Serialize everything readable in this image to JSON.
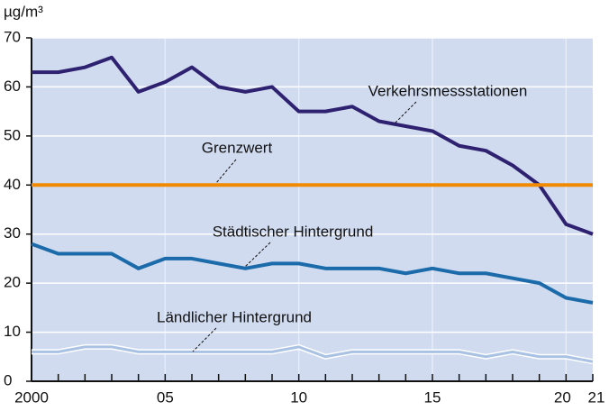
{
  "chart_data": {
    "type": "line",
    "y_label": "µg/m³",
    "x": [
      2000,
      2001,
      2002,
      2003,
      2004,
      2005,
      2006,
      2007,
      2008,
      2009,
      2010,
      2011,
      2012,
      2013,
      2014,
      2015,
      2016,
      2017,
      2018,
      2019,
      2020,
      2021
    ],
    "xlim": [
      2000,
      2021
    ],
    "xticks": [
      2000,
      {
        "value": 2005,
        "label": "05"
      },
      10,
      15,
      20,
      21
    ],
    "ylim": [
      0,
      70
    ],
    "yticks": [
      0,
      10,
      20,
      30,
      40,
      50,
      60,
      70
    ],
    "grid": true,
    "series": [
      {
        "name": "Verkehrsmessstationen",
        "color": "#2e2170",
        "values": [
          63,
          63,
          64,
          66,
          59,
          61,
          64,
          60,
          59,
          60,
          55,
          55,
          56,
          53,
          52,
          51,
          48,
          47,
          44,
          40,
          32,
          30
        ]
      },
      {
        "name": "Grenzwert",
        "color": "#f18a00",
        "values": [
          40,
          40,
          40,
          40,
          40,
          40,
          40,
          40,
          40,
          40,
          40,
          40,
          40,
          40,
          40,
          40,
          40,
          40,
          40,
          40,
          40,
          40
        ]
      },
      {
        "name": "Städtischer Hintergrund",
        "color": "#1b6aa9",
        "values": [
          28,
          26,
          26,
          26,
          23,
          25,
          25,
          24,
          23,
          24,
          24,
          23,
          23,
          23,
          22,
          23,
          22,
          22,
          21,
          20,
          17,
          16
        ]
      },
      {
        "name": "Ländlicher Hintergrund",
        "color": "#a9c2e3",
        "outline": "#ffffff",
        "values": [
          6,
          6,
          7,
          7,
          6,
          6,
          6,
          6,
          6,
          6,
          7,
          5,
          6,
          6,
          6,
          6,
          6,
          5,
          6,
          5,
          5,
          4
        ]
      }
    ]
  }
}
